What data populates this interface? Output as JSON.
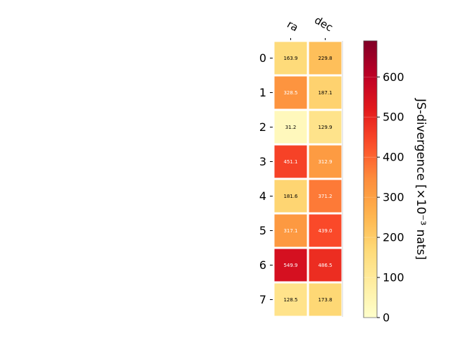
{
  "chart_data": {
    "type": "heatmap",
    "columns": [
      "ra",
      "dec"
    ],
    "rows": [
      "0",
      "1",
      "2",
      "3",
      "4",
      "5",
      "6",
      "7"
    ],
    "values": [
      [
        163.9,
        229.8
      ],
      [
        328.5,
        187.1
      ],
      [
        31.2,
        129.9
      ],
      [
        451.1,
        312.9
      ],
      [
        181.6,
        371.2
      ],
      [
        317.1,
        439.0
      ],
      [
        549.9,
        486.5
      ],
      [
        128.5,
        173.8
      ]
    ],
    "value_labels": [
      [
        "163.9",
        "229.8"
      ],
      [
        "328.5",
        "187.1"
      ],
      [
        "31.2",
        "129.9"
      ],
      [
        "451.1",
        "312.9"
      ],
      [
        "181.6",
        "371.2"
      ],
      [
        "317.1",
        "439.0"
      ],
      [
        "549.9",
        "486.5"
      ],
      [
        "128.5",
        "173.8"
      ]
    ],
    "colorbar": {
      "label": "JS-divergence [×10⁻³ nats]",
      "colormap": "YlOrRd",
      "vmin": 0,
      "vmax": 690,
      "ticks": [
        0,
        100,
        200,
        300,
        400,
        500,
        600
      ],
      "tick_labels": [
        "0",
        "100",
        "200",
        "300",
        "400",
        "500",
        "600"
      ]
    },
    "title": "",
    "xlabel": "",
    "ylabel": "",
    "grid": false
  }
}
